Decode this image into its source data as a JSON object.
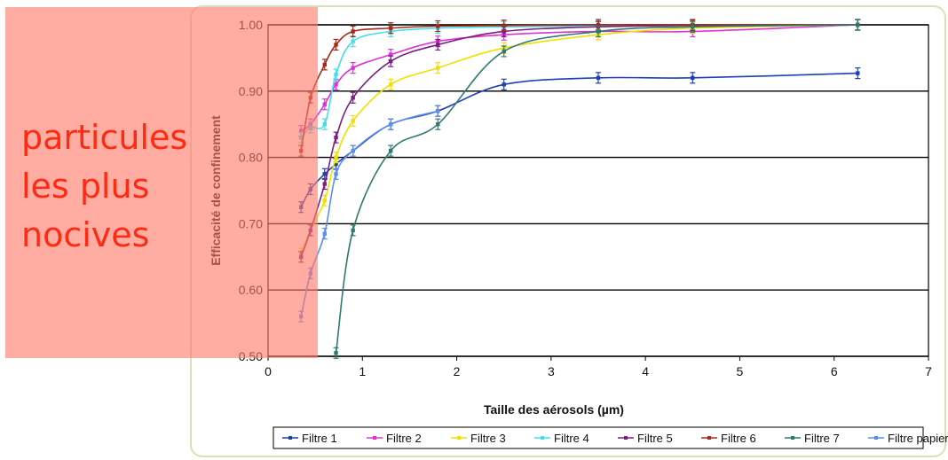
{
  "annotation": {
    "text": "particules\nles plus\nnocives",
    "color": "#ff2a12",
    "box_color": "#ff7a6a"
  },
  "chart_data": {
    "type": "line",
    "xlabel": "Taille des aérosols (µm)",
    "ylabel": "Efficacité de confinement",
    "xlim": [
      0,
      7
    ],
    "ylim": [
      0.5,
      1.0
    ],
    "xticks": [
      "0",
      "1",
      "2",
      "3",
      "4",
      "5",
      "6",
      "7"
    ],
    "yticks": [
      "0.50",
      "0.60",
      "0.70",
      "0.80",
      "0.90",
      "1.00"
    ],
    "grid": "horizontal",
    "legend_position": "bottom",
    "series": [
      {
        "name": "Filtre 1",
        "color": "#1f3fb4",
        "x": [
          0.35,
          0.45,
          0.6,
          0.72,
          0.9,
          1.3,
          1.8,
          2.5,
          3.5,
          4.5,
          6.25
        ],
        "y": [
          0.725,
          0.752,
          0.775,
          0.79,
          0.81,
          0.85,
          0.87,
          0.91,
          0.92,
          0.92,
          0.927
        ]
      },
      {
        "name": "Filtre 2",
        "color": "#e030d8",
        "x": [
          0.35,
          0.45,
          0.6,
          0.72,
          0.9,
          1.3,
          1.8,
          2.5,
          3.5,
          4.5,
          6.25
        ],
        "y": [
          0.84,
          0.85,
          0.88,
          0.91,
          0.935,
          0.955,
          0.975,
          0.985,
          0.99,
          0.99,
          1.0
        ]
      },
      {
        "name": "Filtre 3",
        "color": "#f0e000",
        "x": [
          0.35,
          0.45,
          0.6,
          0.72,
          0.9,
          1.3,
          1.8,
          2.5,
          3.5,
          4.5,
          6.25
        ],
        "y": [
          0.655,
          0.69,
          0.735,
          0.8,
          0.855,
          0.91,
          0.935,
          0.965,
          0.985,
          0.995,
          1.0
        ]
      },
      {
        "name": "Filtre 4",
        "color": "#40e0e8",
        "x": [
          0.35,
          0.45,
          0.6,
          0.72,
          0.9,
          1.3,
          1.8,
          2.5,
          3.5,
          4.5,
          6.25
        ],
        "y": [
          0.83,
          0.845,
          0.85,
          0.925,
          0.975,
          0.99,
          0.995,
          0.997,
          0.998,
          0.999,
          1.0
        ]
      },
      {
        "name": "Filtre 5",
        "color": "#7a2080",
        "x": [
          0.35,
          0.45,
          0.6,
          0.72,
          0.9,
          1.3,
          1.8,
          2.5,
          3.5,
          4.5,
          6.25
        ],
        "y": [
          0.65,
          0.69,
          0.76,
          0.83,
          0.89,
          0.945,
          0.97,
          0.99,
          0.997,
          0.999,
          1.0
        ]
      },
      {
        "name": "Filtre 6",
        "color": "#a82818",
        "x": [
          0.35,
          0.45,
          0.6,
          0.72,
          0.9,
          1.3,
          1.8,
          2.5,
          3.5,
          4.5,
          6.25
        ],
        "y": [
          0.81,
          0.89,
          0.94,
          0.97,
          0.99,
          0.995,
          0.998,
          0.999,
          1.0,
          1.0,
          1.0
        ]
      },
      {
        "name": "Filtre 7",
        "color": "#2f7a70",
        "x": [
          0.72,
          0.9,
          1.3,
          1.8,
          2.5,
          3.5,
          4.5,
          6.25
        ],
        "y": [
          0.505,
          0.69,
          0.81,
          0.85,
          0.96,
          0.99,
          0.997,
          1.0
        ]
      },
      {
        "name": "Filtre papier",
        "color": "#5a8ef0",
        "x": [
          0.35,
          0.45,
          0.6,
          0.72,
          0.9,
          1.3,
          1.8
        ],
        "y": [
          0.56,
          0.625,
          0.685,
          0.775,
          0.81,
          0.85,
          0.87
        ]
      }
    ]
  }
}
